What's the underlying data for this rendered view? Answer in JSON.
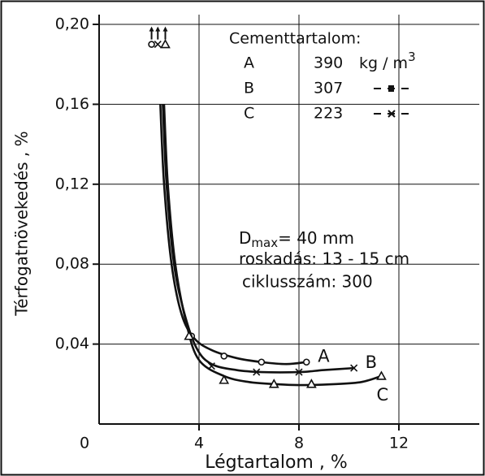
{
  "chart_data": {
    "type": "line",
    "xlabel": "Légtartalom , %",
    "ylabel": "Térfogatnövekedés , %",
    "xlim": [
      0,
      15
    ],
    "ylim": [
      0,
      0.2
    ],
    "xticks": [
      4,
      8,
      12
    ],
    "yticks": [
      0,
      {
        "value": 0.04,
        "label": "0,04"
      },
      {
        "value": 0.08,
        "label": "0,08"
      },
      {
        "value": 0.12,
        "label": "0,12"
      },
      {
        "value": 0.16,
        "label": "0,16"
      },
      {
        "value": 0.2,
        "label": "0,20"
      }
    ],
    "grid": true,
    "color": "#111111",
    "series": [
      {
        "name": "A",
        "marker": "circle",
        "x": [
          2.45,
          2.6,
          2.9,
          3.3,
          3.8,
          4.5,
          5.5,
          6.5,
          7.5,
          8.3
        ],
        "values": [
          0.16,
          0.12,
          0.08,
          0.055,
          0.043,
          0.037,
          0.033,
          0.031,
          0.03,
          0.031
        ],
        "marker_x": [
          2.1,
          3.7,
          5,
          6.5,
          8.3
        ],
        "marker_values": [
          0.19,
          0.044,
          0.034,
          0.031,
          0.031
        ]
      },
      {
        "name": "B",
        "marker": "cross",
        "x": [
          2.55,
          2.7,
          3.0,
          3.4,
          3.9,
          4.5,
          5.5,
          6.5,
          8,
          9,
          10.2
        ],
        "values": [
          0.16,
          0.12,
          0.08,
          0.056,
          0.038,
          0.03,
          0.027,
          0.026,
          0.026,
          0.027,
          0.028
        ],
        "marker_x": [
          2.35,
          4.5,
          6.3,
          8,
          10.2
        ],
        "marker_values": [
          0.19,
          0.029,
          0.026,
          0.026,
          0.028
        ]
      },
      {
        "name": "C",
        "marker": "triangle",
        "x": [
          2.6,
          2.75,
          3.05,
          3.5,
          4.0,
          5,
          6,
          7,
          8,
          9.5,
          10.5,
          11.3
        ],
        "values": [
          0.16,
          0.12,
          0.08,
          0.05,
          0.032,
          0.024,
          0.021,
          0.02,
          0.0195,
          0.02,
          0.021,
          0.024
        ],
        "marker_x": [
          2.65,
          3.6,
          5,
          7,
          8.5,
          11.3
        ],
        "marker_values": [
          0.19,
          0.044,
          0.022,
          0.02,
          0.02,
          0.024
        ]
      }
    ],
    "legend": {
      "title": "Cementtartalom:",
      "rows": [
        {
          "amount": "390",
          "unit": "kg / m",
          "unit_sup": "3"
        },
        {
          "amount": "307"
        },
        {
          "amount": "223"
        }
      ]
    },
    "annotations": {
      "dmax": "D",
      "dmax_sub": "max",
      "dmax_rest": "= 40 mm",
      "slump": "roskadás: 13 - 15 cm",
      "cycles": "ciklusszám: 300"
    }
  }
}
